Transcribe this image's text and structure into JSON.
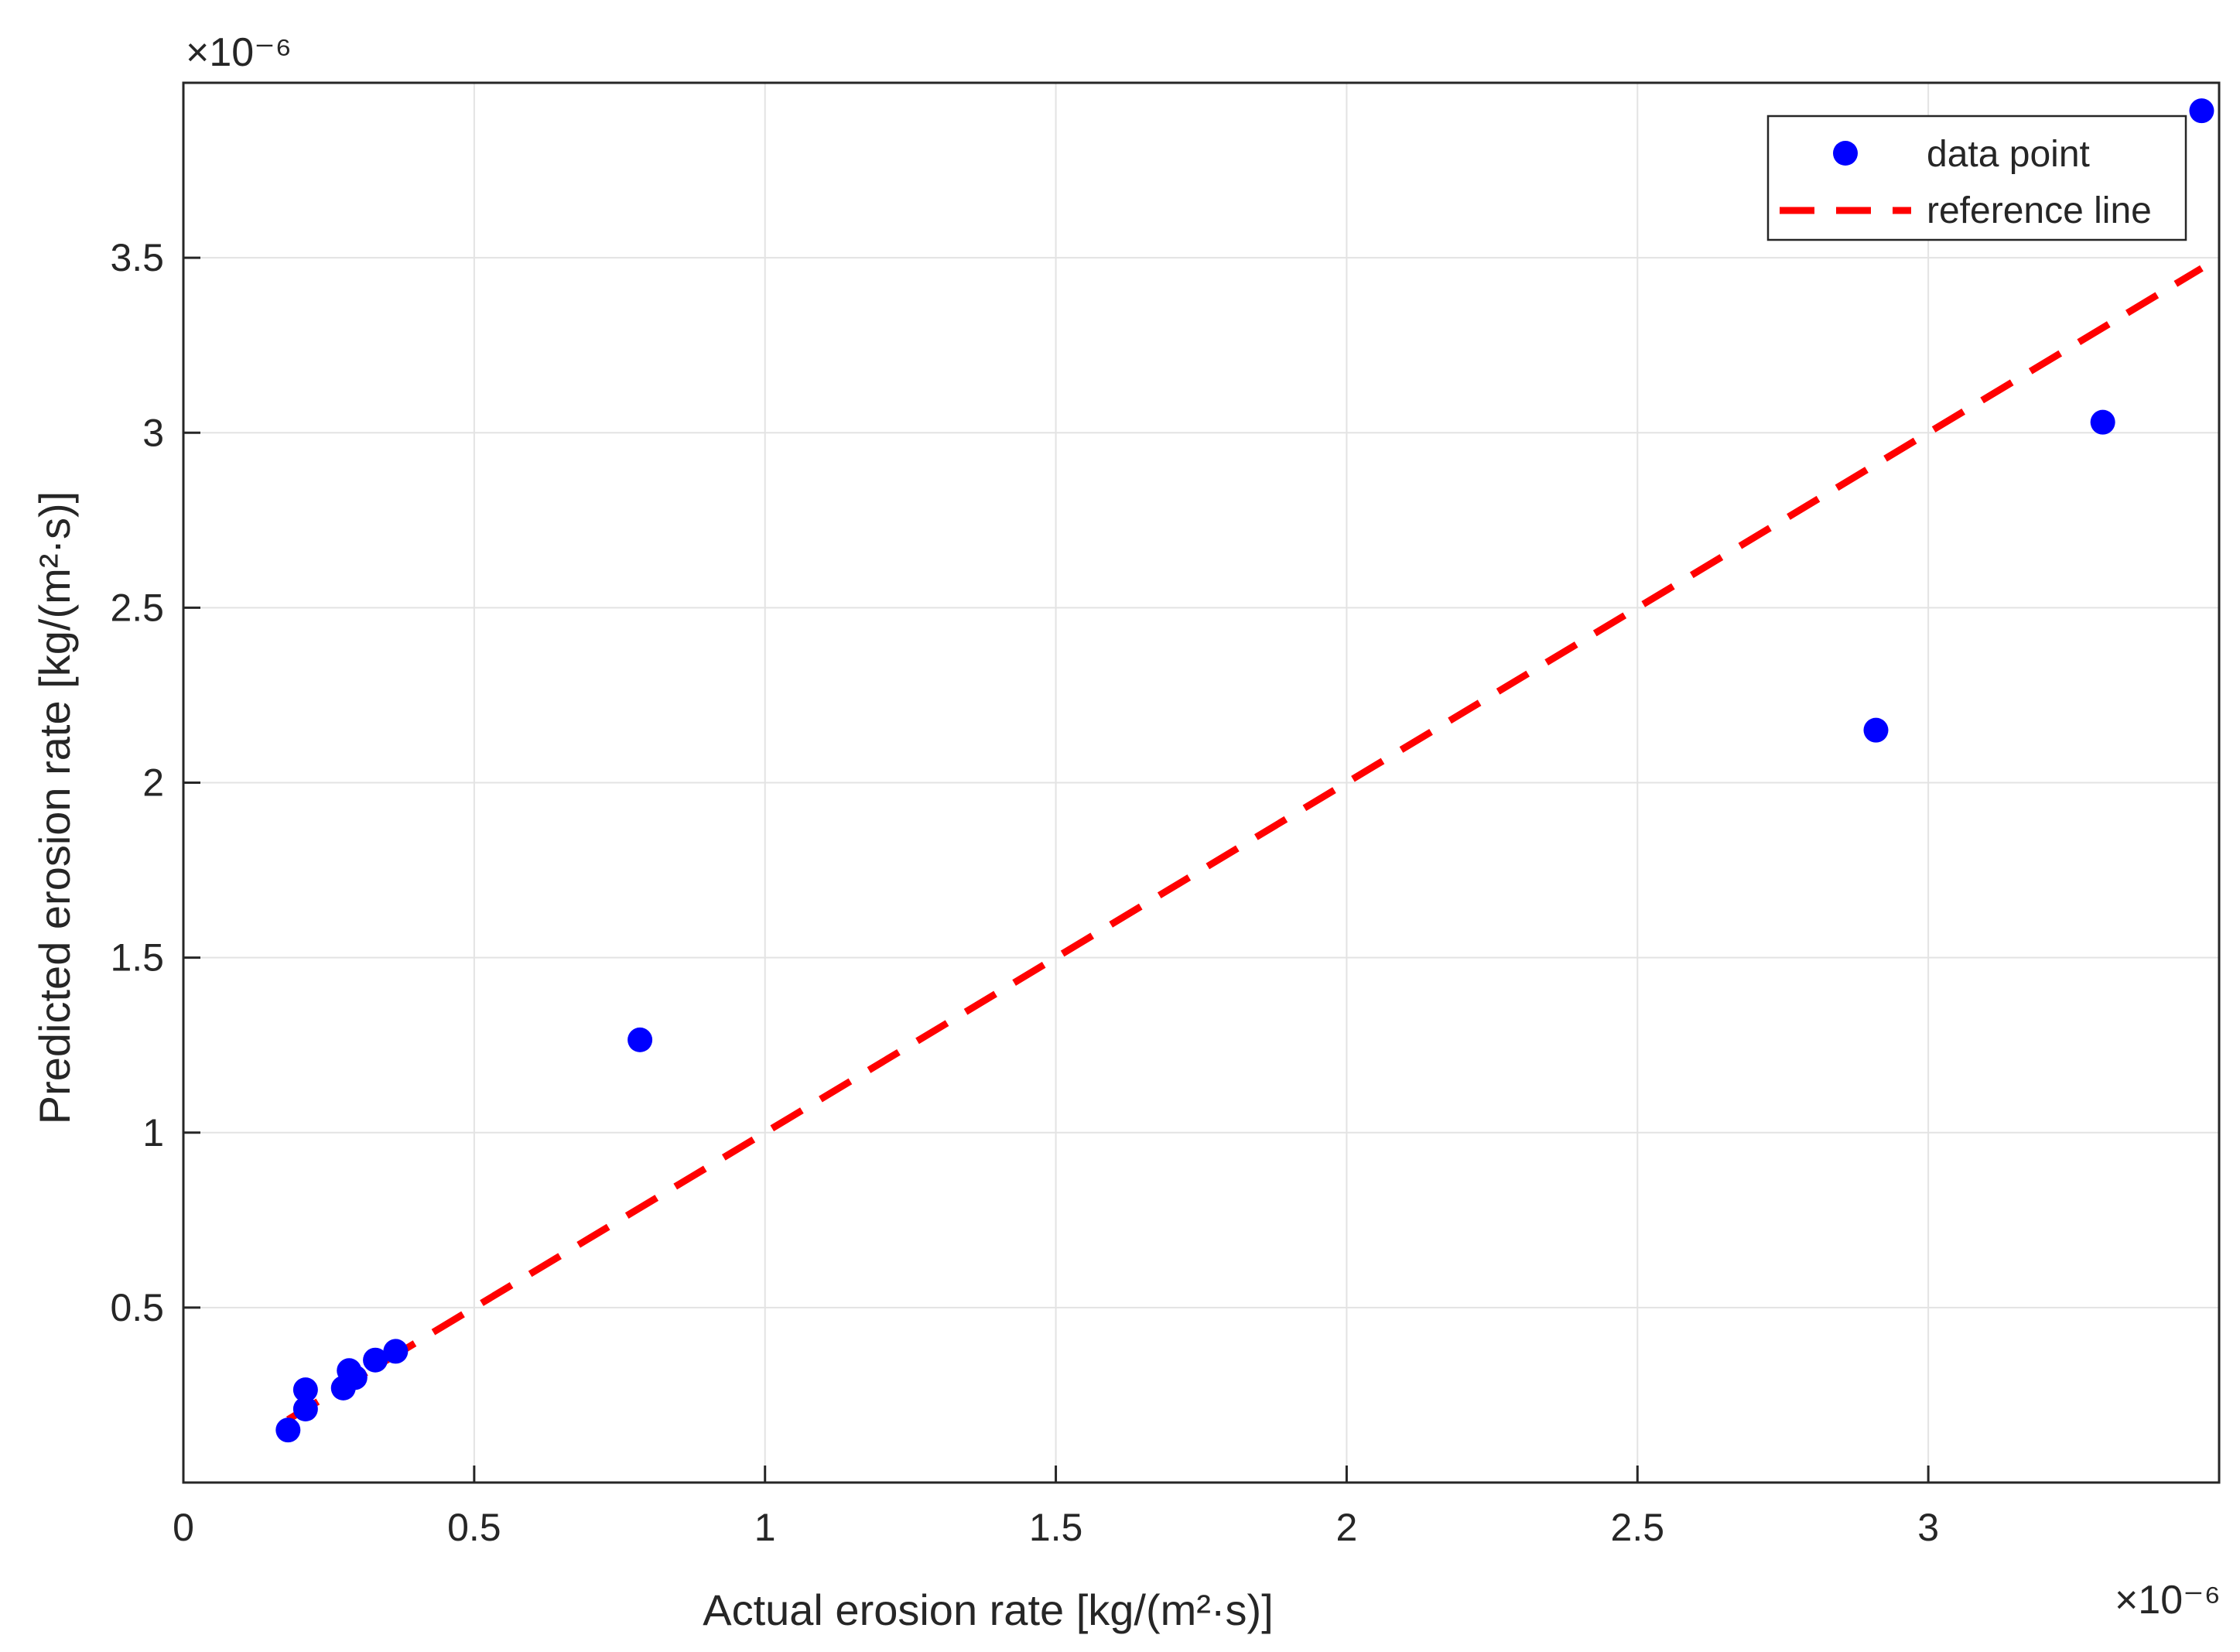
{
  "chart_data": {
    "type": "scatter",
    "xlabel": "Actual erosion rate [kg/(m²·s)]",
    "ylabel": "Predicted erosion rate [kg/(m²·s)]",
    "x_exponent_label": "×10⁻⁶",
    "y_exponent_label": "×10⁻⁶",
    "x_scale": 1e-06,
    "y_scale": 1e-06,
    "xlim": [
      0,
      3.5
    ],
    "ylim": [
      0,
      4.0
    ],
    "xticks": [
      0,
      0.5,
      1,
      1.5,
      2,
      2.5,
      3
    ],
    "xtick_labels": [
      "0",
      "0.5",
      "1",
      "1.5",
      "2",
      "2.5",
      "3"
    ],
    "yticks": [
      0.5,
      1,
      1.5,
      2,
      2.5,
      3,
      3.5
    ],
    "ytick_labels": [
      "0.5",
      "1",
      "1.5",
      "2",
      "2.5",
      "3",
      "3.5"
    ],
    "grid": true,
    "legend_position": "top-right",
    "series": [
      {
        "name": "data point",
        "kind": "scatter",
        "color": "#0000ff",
        "x": [
          0.18,
          0.21,
          0.21,
          0.275,
          0.285,
          0.295,
          0.33,
          0.365,
          0.785,
          2.91,
          3.3,
          3.47
        ],
        "y": [
          0.15,
          0.21,
          0.265,
          0.27,
          0.32,
          0.3,
          0.35,
          0.375,
          1.265,
          2.15,
          3.03,
          3.92
        ]
      },
      {
        "name": "reference line",
        "kind": "line",
        "style": "dashed",
        "color": "#ff0000",
        "x": [
          0.18,
          3.47
        ],
        "y": [
          0.18,
          3.47
        ]
      }
    ]
  }
}
